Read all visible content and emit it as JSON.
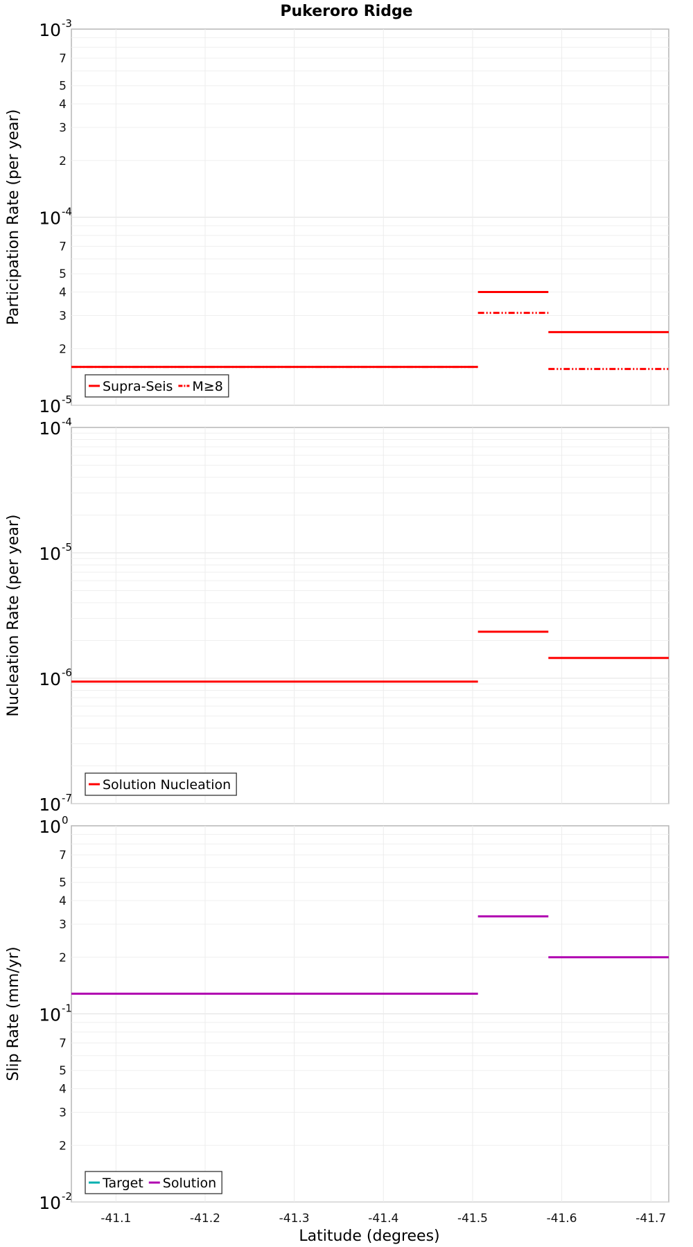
{
  "title": "Pukeroro Ridge",
  "chart_data": [
    {
      "type": "line",
      "name": "participation",
      "ylabel": "Participation Rate (per year)",
      "yscale": "log",
      "ylim": [
        1e-05,
        0.001
      ],
      "major_ticks": [
        {
          "base": "10",
          "exp": "-3",
          "value": 0.001
        },
        {
          "base": "10",
          "exp": "-4",
          "value": 0.0001
        },
        {
          "base": "10",
          "exp": "-5",
          "value": 1e-05
        }
      ],
      "minor_labels": [
        {
          "label": "7",
          "value": 0.0007
        },
        {
          "label": "5",
          "value": 0.0005
        },
        {
          "label": "4",
          "value": 0.0004
        },
        {
          "label": "3",
          "value": 0.0003
        },
        {
          "label": "2",
          "value": 0.0002
        },
        {
          "label": "7",
          "value": 7e-05
        },
        {
          "label": "5",
          "value": 5e-05
        },
        {
          "label": "4",
          "value": 4e-05
        },
        {
          "label": "3",
          "value": 3e-05
        },
        {
          "label": "2",
          "value": 2e-05
        }
      ],
      "series": [
        {
          "name": "Supra-Seis",
          "color": "#ff0000",
          "dash": "solid",
          "segments": [
            {
              "x": [
                -41.05,
                -41.506
              ],
              "y": 1.6e-05
            },
            {
              "x": [
                -41.506,
                -41.585
              ],
              "y": 4e-05
            },
            {
              "x": [
                -41.585,
                -41.72
              ],
              "y": 2.45e-05
            }
          ]
        },
        {
          "name": "M≥8",
          "color": "#ff0000",
          "dash": "dashdot",
          "segments": [
            {
              "x": [
                -41.05,
                -41.506
              ],
              "y": 1.6e-05
            },
            {
              "x": [
                -41.506,
                -41.585
              ],
              "y": 3.1e-05
            },
            {
              "x": [
                -41.585,
                -41.72
              ],
              "y": 1.56e-05
            }
          ]
        }
      ]
    },
    {
      "type": "line",
      "name": "nucleation",
      "ylabel": "Nucleation Rate (per year)",
      "yscale": "log",
      "ylim": [
        1e-07,
        0.0001
      ],
      "major_ticks": [
        {
          "base": "10",
          "exp": "-4",
          "value": 0.0001
        },
        {
          "base": "10",
          "exp": "-5",
          "value": 1e-05
        },
        {
          "base": "10",
          "exp": "-6",
          "value": 1e-06
        },
        {
          "base": "10",
          "exp": "-7",
          "value": 1e-07
        }
      ],
      "minor_labels": [],
      "series": [
        {
          "name": "Solution Nucleation",
          "color": "#ff0000",
          "dash": "solid",
          "segments": [
            {
              "x": [
                -41.05,
                -41.506
              ],
              "y": 9.4e-07
            },
            {
              "x": [
                -41.506,
                -41.585
              ],
              "y": 2.35e-06
            },
            {
              "x": [
                -41.585,
                -41.72
              ],
              "y": 1.45e-06
            }
          ]
        }
      ]
    },
    {
      "type": "line",
      "name": "slip",
      "ylabel": "Slip Rate (mm/yr)",
      "yscale": "log",
      "ylim": [
        0.01,
        1
      ],
      "major_ticks": [
        {
          "base": "10",
          "exp": "0",
          "value": 1
        },
        {
          "base": "10",
          "exp": "-1",
          "value": 0.1
        },
        {
          "base": "10",
          "exp": "-2",
          "value": 0.01
        }
      ],
      "minor_labels": [
        {
          "label": "7",
          "value": 0.7
        },
        {
          "label": "5",
          "value": 0.5
        },
        {
          "label": "4",
          "value": 0.4
        },
        {
          "label": "3",
          "value": 0.3
        },
        {
          "label": "2",
          "value": 0.2
        },
        {
          "label": "7",
          "value": 0.07
        },
        {
          "label": "5",
          "value": 0.05
        },
        {
          "label": "4",
          "value": 0.04
        },
        {
          "label": "3",
          "value": 0.03
        },
        {
          "label": "2",
          "value": 0.02
        }
      ],
      "series": [
        {
          "name": "Target",
          "color": "#00b0b0",
          "dash": "solid",
          "segments": []
        },
        {
          "name": "Solution",
          "color": "#b000b0",
          "dash": "solid",
          "segments": [
            {
              "x": [
                -41.05,
                -41.506
              ],
              "y": 0.128
            },
            {
              "x": [
                -41.506,
                -41.585
              ],
              "y": 0.33
            },
            {
              "x": [
                -41.585,
                -41.72
              ],
              "y": 0.2
            }
          ]
        }
      ]
    }
  ],
  "xaxis": {
    "label": "Latitude (degrees)",
    "xlim": [
      -41.05,
      -41.72
    ],
    "ticks": [
      {
        "label": "-41.1",
        "value": -41.1
      },
      {
        "label": "-41.2",
        "value": -41.2
      },
      {
        "label": "-41.3",
        "value": -41.3
      },
      {
        "label": "-41.4",
        "value": -41.4
      },
      {
        "label": "-41.5",
        "value": -41.5
      },
      {
        "label": "-41.6",
        "value": -41.6
      },
      {
        "label": "-41.7",
        "value": -41.7
      }
    ]
  }
}
